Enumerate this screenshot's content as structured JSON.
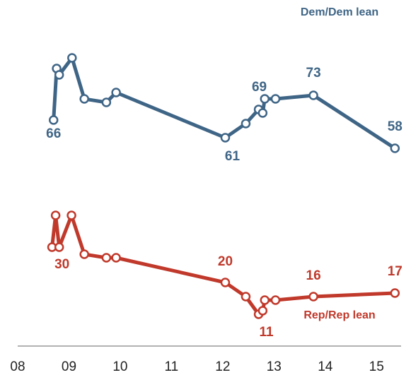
{
  "chart_data": {
    "type": "line",
    "xlim": [
      2008,
      2015.48
    ],
    "ylim": [
      0,
      100
    ],
    "xticks": [
      {
        "value": 2008,
        "label": "08"
      },
      {
        "value": 2009,
        "label": "09"
      },
      {
        "value": 2010,
        "label": "10"
      },
      {
        "value": 2011,
        "label": "11"
      },
      {
        "value": 2012,
        "label": "12"
      },
      {
        "value": 2013,
        "label": "13"
      },
      {
        "value": 2014,
        "label": "14"
      },
      {
        "value": 2015,
        "label": "15"
      }
    ],
    "series": [
      {
        "name": "Dem/Dem lean",
        "color": "#3f6586",
        "x": [
          2008.7,
          2008.76,
          2008.81,
          2009.06,
          2009.3,
          2009.73,
          2009.92,
          2012.05,
          2012.45,
          2012.7,
          2012.78,
          2012.82,
          2013.03,
          2013.77,
          2015.36
        ],
        "values": [
          66,
          80.6,
          78.8,
          83.6,
          72,
          71,
          73.8,
          61,
          65,
          69,
          68,
          72,
          72,
          73,
          58
        ],
        "value_labels": [
          "66",
          null,
          null,
          null,
          null,
          null,
          null,
          "61",
          null,
          "69",
          null,
          null,
          null,
          "73",
          "58"
        ]
      },
      {
        "name": "Rep/Rep lean",
        "color": "#c0392b",
        "x": [
          2008.67,
          2008.74,
          2008.81,
          2009.05,
          2009.3,
          2009.73,
          2009.92,
          2012.05,
          2012.45,
          2012.7,
          2012.78,
          2012.82,
          2013.03,
          2013.77,
          2015.36
        ],
        "values": [
          30,
          39,
          30,
          39,
          28,
          27,
          27,
          20,
          16,
          11,
          12,
          15,
          15,
          16,
          17
        ],
        "value_labels": [
          null,
          null,
          "30",
          null,
          null,
          null,
          null,
          "20",
          null,
          "11",
          null,
          null,
          null,
          "16",
          "17"
        ]
      }
    ]
  }
}
